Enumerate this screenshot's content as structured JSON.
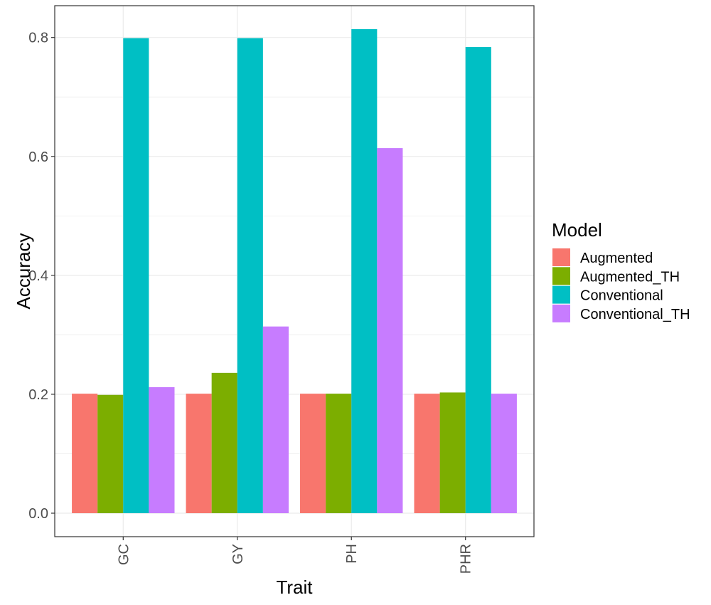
{
  "chart_data": {
    "type": "bar",
    "xlabel": "Trait",
    "ylabel": "Accuracy",
    "categories": [
      "GC",
      "GY",
      "PH",
      "PHR"
    ],
    "series": [
      {
        "name": "Augmented",
        "color": "#F8766D",
        "values": [
          0.201,
          0.201,
          0.201,
          0.201
        ]
      },
      {
        "name": "Augmented_TH",
        "color": "#7CAE00",
        "values": [
          0.199,
          0.236,
          0.201,
          0.203
        ]
      },
      {
        "name": "Conventional",
        "color": "#00BFC4",
        "values": [
          0.799,
          0.799,
          0.814,
          0.784
        ]
      },
      {
        "name": "Conventional_TH",
        "color": "#C77CFF",
        "values": [
          0.212,
          0.314,
          0.614,
          0.201
        ]
      }
    ],
    "ylim": [
      -0.0395,
      0.8535
    ],
    "yticks": [
      0.0,
      0.2,
      0.4,
      0.6,
      0.8
    ],
    "ytick_labels": [
      "0.0",
      "0.2",
      "0.4",
      "0.6",
      "0.8"
    ],
    "legend": {
      "title": "Model",
      "position": "right"
    },
    "grid": true
  }
}
